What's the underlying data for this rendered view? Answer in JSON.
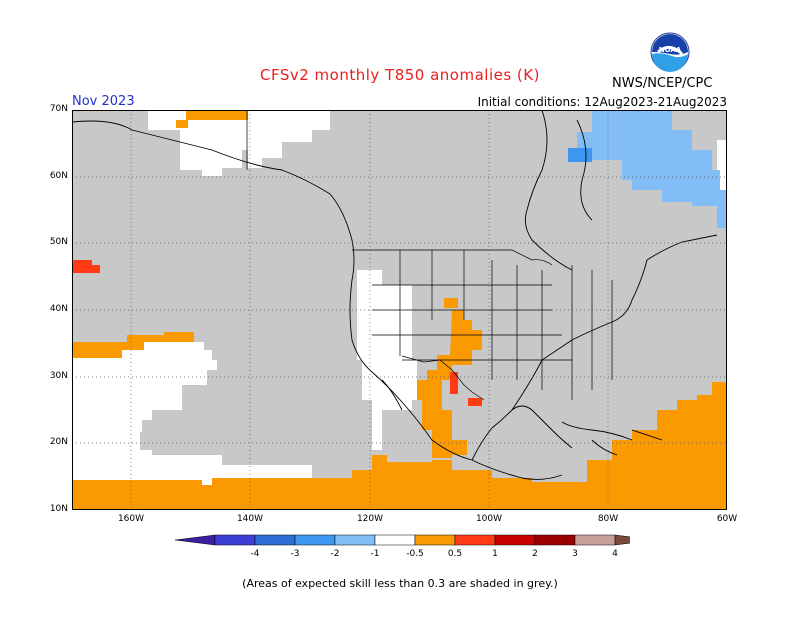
{
  "title": "CFSv2 monthly T850 anomalies (K)",
  "month": "Nov 2023",
  "initial_conditions": "Initial conditions: 12Aug2023-21Aug2023",
  "agency": "NWS/NCEP/CPC",
  "logo_text": "NOAA",
  "footnote": "(Areas of expected skill less than 0.3 are shaded in grey.)",
  "lat_labels": [
    "70N",
    "60N",
    "50N",
    "40N",
    "30N",
    "20N",
    "10N"
  ],
  "lon_labels": [
    "160W",
    "140W",
    "120W",
    "100W",
    "80W",
    "60W"
  ],
  "colorbar": {
    "labels": [
      "-4",
      "-3",
      "-2",
      "-1",
      "-0.5",
      "0.5",
      "1",
      "2",
      "3",
      "4"
    ],
    "colors": [
      "#3b1f9e",
      "#3c3fd3",
      "#2d6fd6",
      "#3d97f0",
      "#82bdf6",
      "#ffffff",
      "#fb9a00",
      "#ff3a14",
      "#c80000",
      "#9b0000",
      "#c8a09a",
      "#7a4a3a"
    ]
  },
  "colors": {
    "skill_grey": "#c8c8c8",
    "positive_anomaly": "#fb9a00",
    "strong_positive": "#ff3a14",
    "negative_anomaly": "#82bdf6",
    "moderate_negative": "#3d97f0"
  }
}
